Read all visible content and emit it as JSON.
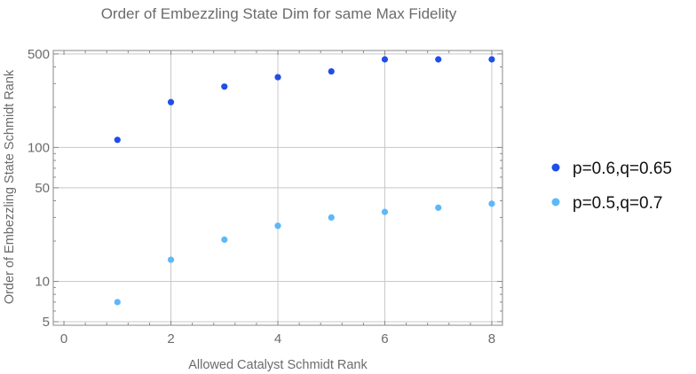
{
  "chart_data": {
    "type": "scatter",
    "title": "Order of Embezzling State Dim for same Max Fidelity",
    "xlabel": "Allowed Catalyst Schmidt Rank",
    "ylabel": "Order of Embezzling State Schmidt Rank",
    "xlim": [
      -0.2,
      8.2
    ],
    "ylim": [
      4.7,
      530
    ],
    "yscale": "log",
    "grid": true,
    "legend_position": "right",
    "x_ticks": [
      0,
      2,
      4,
      6,
      8
    ],
    "y_ticks": [
      5,
      10,
      50,
      100,
      500
    ],
    "series": [
      {
        "name": "p=0.6,q=0.65",
        "color": "#1f4ee8",
        "x": [
          1,
          2,
          3,
          4,
          5,
          6,
          7,
          8
        ],
        "y": [
          114,
          218,
          285,
          335,
          370,
          455,
          455,
          455
        ]
      },
      {
        "name": "p=0.5,q=0.7",
        "color": "#5db8f7",
        "x": [
          1,
          2,
          3,
          4,
          5,
          6,
          7,
          8
        ],
        "y": [
          7,
          14.5,
          20.5,
          26,
          30,
          33,
          35.5,
          38
        ]
      }
    ]
  }
}
